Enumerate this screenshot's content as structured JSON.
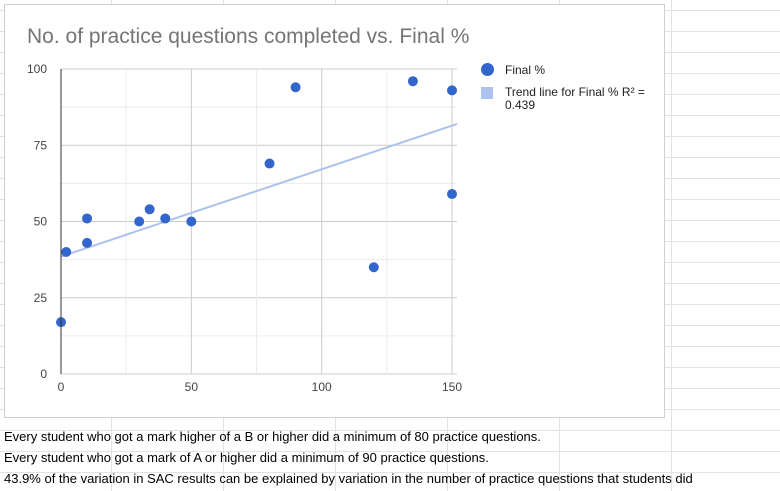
{
  "chart_data": {
    "type": "scatter",
    "title": "No. of practice questions completed vs. Final %",
    "xlabel": "",
    "ylabel": "",
    "xlim": [
      0,
      150
    ],
    "ylim": [
      0,
      100
    ],
    "x_ticks": [
      "0",
      "50",
      "100",
      "150"
    ],
    "y_ticks": [
      "0",
      "25",
      "50",
      "75",
      "100"
    ],
    "grid": true,
    "legend_position": "right",
    "series": [
      {
        "name": "Final %",
        "color": "#3366cc",
        "points": [
          {
            "x": 0,
            "y": 17
          },
          {
            "x": 2,
            "y": 40
          },
          {
            "x": 10,
            "y": 51
          },
          {
            "x": 10,
            "y": 43
          },
          {
            "x": 30,
            "y": 50
          },
          {
            "x": 34,
            "y": 54
          },
          {
            "x": 40,
            "y": 51
          },
          {
            "x": 50,
            "y": 50
          },
          {
            "x": 80,
            "y": 69
          },
          {
            "x": 90,
            "y": 94
          },
          {
            "x": 120,
            "y": 35
          },
          {
            "x": 135,
            "y": 96
          },
          {
            "x": 150,
            "y": 93
          },
          {
            "x": 150,
            "y": 59
          }
        ]
      }
    ],
    "trendline": {
      "name": "Trend line for Final % R² = 0.439",
      "color": "#adc2ef",
      "points": [
        {
          "x": 0,
          "y": 38.5
        },
        {
          "x": 152,
          "y": 82
        }
      ]
    }
  },
  "notes": [
    "Every student who got a mark higher of a B or higher did a minimum of 80 practice questions.",
    "Every student who got a mark of A or higher did a minimum of 90 practice questions.",
    "43.9% of the variation in SAC results can be explained by variation in the number of practice questions that students did"
  ]
}
